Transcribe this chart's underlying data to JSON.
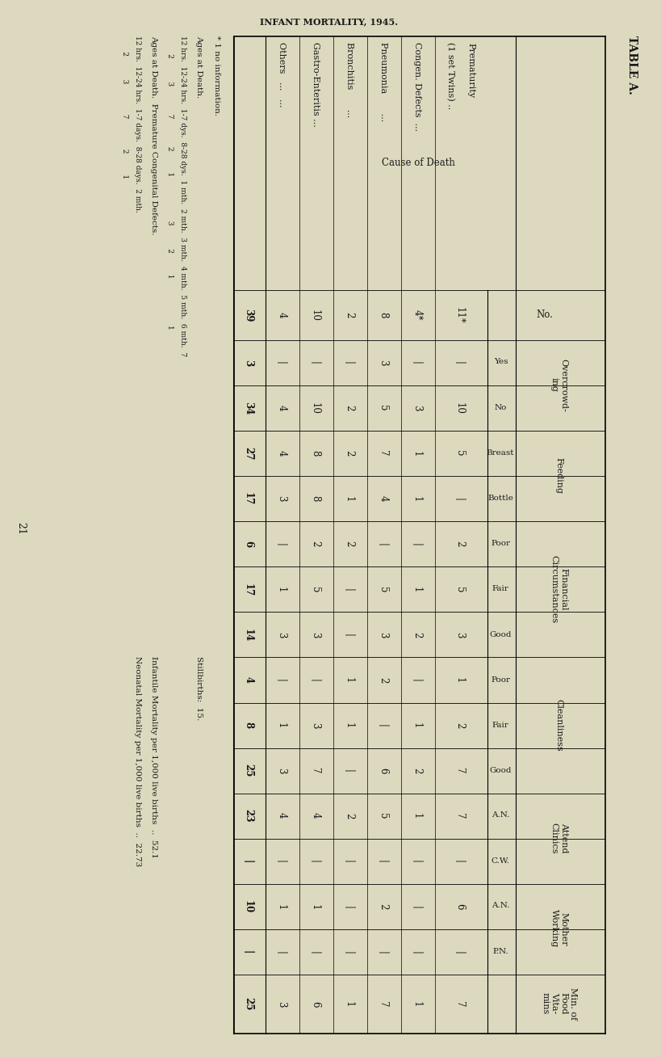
{
  "title": "TABLE A.",
  "subtitle": "INFANT MORTALITY, 1945.",
  "bg_color": "#ddd9bf",
  "text_color": "#1a1a1a",
  "page_number": "21",
  "rows": [
    {
      "cause": "Prematurity\n(1 set Twins)",
      "no": "11*",
      "oc_yes": "-",
      "oc_no": "10",
      "feed_br": "5",
      "feed_bo": "-",
      "fin_po": "2",
      "fin_fa": "5",
      "fin_go": "3",
      "cl_po": "1",
      "cl_fa": "2",
      "cl_go": "7",
      "at_an": "7",
      "at_cw": "-",
      "mo_an": "6",
      "mo_pn": "-",
      "vit": "7"
    },
    {
      "cause": "Congen. Defects  ...",
      "no": "4*",
      "oc_yes": "-",
      "oc_no": "3",
      "feed_br": "1",
      "feed_bo": "1",
      "fin_po": "-",
      "fin_fa": "1",
      "fin_go": "2",
      "cl_po": "-",
      "cl_fa": "1",
      "cl_go": "2",
      "at_an": "1",
      "at_cw": "-",
      "mo_an": "-",
      "mo_pn": "-",
      "vit": "1"
    },
    {
      "cause": "Pneumonia       ...",
      "no": "8",
      "oc_yes": "3",
      "oc_no": "5",
      "feed_br": "7",
      "feed_bo": "4",
      "fin_po": "-",
      "fin_fa": "5",
      "fin_go": "3",
      "cl_po": "2",
      "cl_fa": "-",
      "cl_go": "6",
      "at_an": "5",
      "at_cw": "-",
      "mo_an": "2",
      "mo_pn": "-",
      "vit": "7"
    },
    {
      "cause": "Bronchitis       ...",
      "no": "2",
      "oc_yes": "-",
      "oc_no": "2",
      "feed_br": "2",
      "feed_bo": "1",
      "fin_po": "2",
      "fin_fa": "-",
      "fin_go": "-",
      "cl_po": "1",
      "cl_fa": "1",
      "cl_go": "-",
      "at_an": "2",
      "at_cw": "-",
      "mo_an": "-",
      "mo_pn": "-",
      "vit": "1"
    },
    {
      "cause": "Gastro-Enteritis ...",
      "no": "10",
      "oc_yes": "-",
      "oc_no": "10",
      "feed_br": "8",
      "feed_bo": "8",
      "fin_po": "2",
      "fin_fa": "5",
      "fin_go": "3",
      "cl_po": "-",
      "cl_fa": "3",
      "cl_go": "7",
      "at_an": "4",
      "at_cw": "-",
      "mo_an": "1",
      "mo_pn": "-",
      "vit": "6"
    },
    {
      "cause": "Others   ...   ...",
      "no": "4",
      "oc_yes": "-",
      "oc_no": "4",
      "feed_br": "4",
      "feed_bo": "3",
      "fin_po": "-",
      "fin_fa": "1",
      "fin_go": "3",
      "cl_po": "-",
      "cl_fa": "1",
      "cl_go": "3",
      "at_an": "4",
      "at_cw": "-",
      "mo_an": "1",
      "mo_pn": "-",
      "vit": "3"
    }
  ],
  "totals": {
    "no": "39",
    "oc_yes": "3",
    "oc_no": "34",
    "feed_br": "27",
    "feed_bo": "17",
    "fin_po": "6",
    "fin_fa": "17",
    "fin_go": "14",
    "cl_po": "4",
    "cl_fa": "8",
    "cl_go": "25",
    "at_an": "23",
    "at_cw": "-",
    "mo_an": "10",
    "mo_pn": "-",
    "vit": "25"
  },
  "col_groups": [
    {
      "label": "Cause of Death",
      "cols": 1,
      "subs": []
    },
    {
      "label": "No.",
      "cols": 1,
      "subs": []
    },
    {
      "label": "Overcrowd-\ning",
      "cols": 2,
      "subs": [
        "Yes",
        "No"
      ]
    },
    {
      "label": "Feeding",
      "cols": 2,
      "subs": [
        "Breast",
        "Bottle"
      ]
    },
    {
      "label": "Financial\nCircumstances",
      "cols": 3,
      "subs": [
        "Poor",
        "Fair",
        "Good"
      ]
    },
    {
      "label": "Cleanliness",
      "cols": 3,
      "subs": [
        "Poor",
        "Fair",
        "Good"
      ]
    },
    {
      "label": "Attend\nClinics",
      "cols": 2,
      "subs": [
        "A.N.",
        "C.W."
      ]
    },
    {
      "label": "Mother\nWorking",
      "cols": 2,
      "subs": [
        "A.N.",
        "P.N."
      ]
    },
    {
      "label": "Min. of\nFood\nVita-\nmins",
      "cols": 1,
      "subs": []
    }
  ],
  "fn1": "* 1 no information.",
  "fn_ages1_label": "Ages at Death.",
  "fn_ages1_row1": "12 hrs.  12-24 hrs.  1-7 dys.  8-28 dys.  1 mth.  2 mth.  3 mth.  4 mth.  5 mth.  6 mth.  7",
  "fn_ages1_row2": "      2          3            7            2         1                   3          2         1                    1",
  "fn_ages2_label": "Ages at Death.  Premature Congenital Defects.",
  "fn_ages2_row1": "12 hrs.  12-24 hrs.  1-7 days.  8-28 days.  2 mth.",
  "fn_ages2_row2": "     2          3             7             2         1",
  "fn_stillbirths": "Stillbirths:  15.",
  "infantile": "Infantile Mortality per 1,000 live births  ..  52.1",
  "neonatal": "Neonatal Mortality per 1,000 live births  ..  22.73"
}
